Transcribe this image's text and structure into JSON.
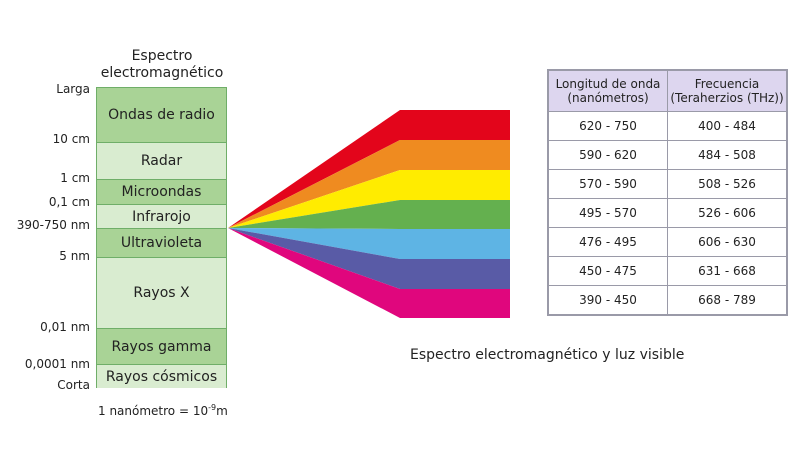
{
  "title_line1": "Espectro",
  "title_line2": "electromagnético",
  "bands": [
    {
      "label": "Ondas de radio",
      "tone": "dark"
    },
    {
      "label": "Radar",
      "tone": "light"
    },
    {
      "label": "Microondas",
      "tone": "dark"
    },
    {
      "label": "Infrarojo",
      "tone": "light"
    },
    {
      "label": "Ultravioleta",
      "tone": "dark"
    },
    {
      "label": "Rayos X",
      "tone": "light"
    },
    {
      "label": "Rayos gamma",
      "tone": "dark"
    },
    {
      "label": "Rayos cósmicos",
      "tone": "light"
    }
  ],
  "scale_labels": [
    "Larga",
    "10 cm",
    "1 cm",
    "0,1 cm",
    "390-750 nm",
    "5 nm",
    "0,01 nm",
    "0,0001 nm",
    "Corta"
  ],
  "note": {
    "text": "1 nanómetro = 10",
    "exponent": "-9",
    "unit": "m"
  },
  "visible_colors": [
    "#e3051b",
    "#ef8b20",
    "#ffec00",
    "#64b04f",
    "#5eb4e4",
    "#595ba6",
    "#e0067d"
  ],
  "caption": "Espectro electromagnético y luz visible",
  "table": {
    "header": [
      "Longitud de onda\n(nanómetros)",
      "Frecuencia\n(Teraherzios (THz))"
    ],
    "header_line1": [
      "Longitud de onda",
      "Frecuencia"
    ],
    "header_line2": [
      "(nanómetros)",
      "(Teraherzios (THz))"
    ],
    "rows": [
      [
        "620 - 750",
        "400 - 484"
      ],
      [
        "590 - 620",
        "484 - 508"
      ],
      [
        "570 - 590",
        "508 - 526"
      ],
      [
        "495 - 570",
        "526 - 606"
      ],
      [
        "476 - 495",
        "606 - 630"
      ],
      [
        "450 - 475",
        "631 - 668"
      ],
      [
        "390 - 450",
        "668 - 789"
      ]
    ]
  }
}
